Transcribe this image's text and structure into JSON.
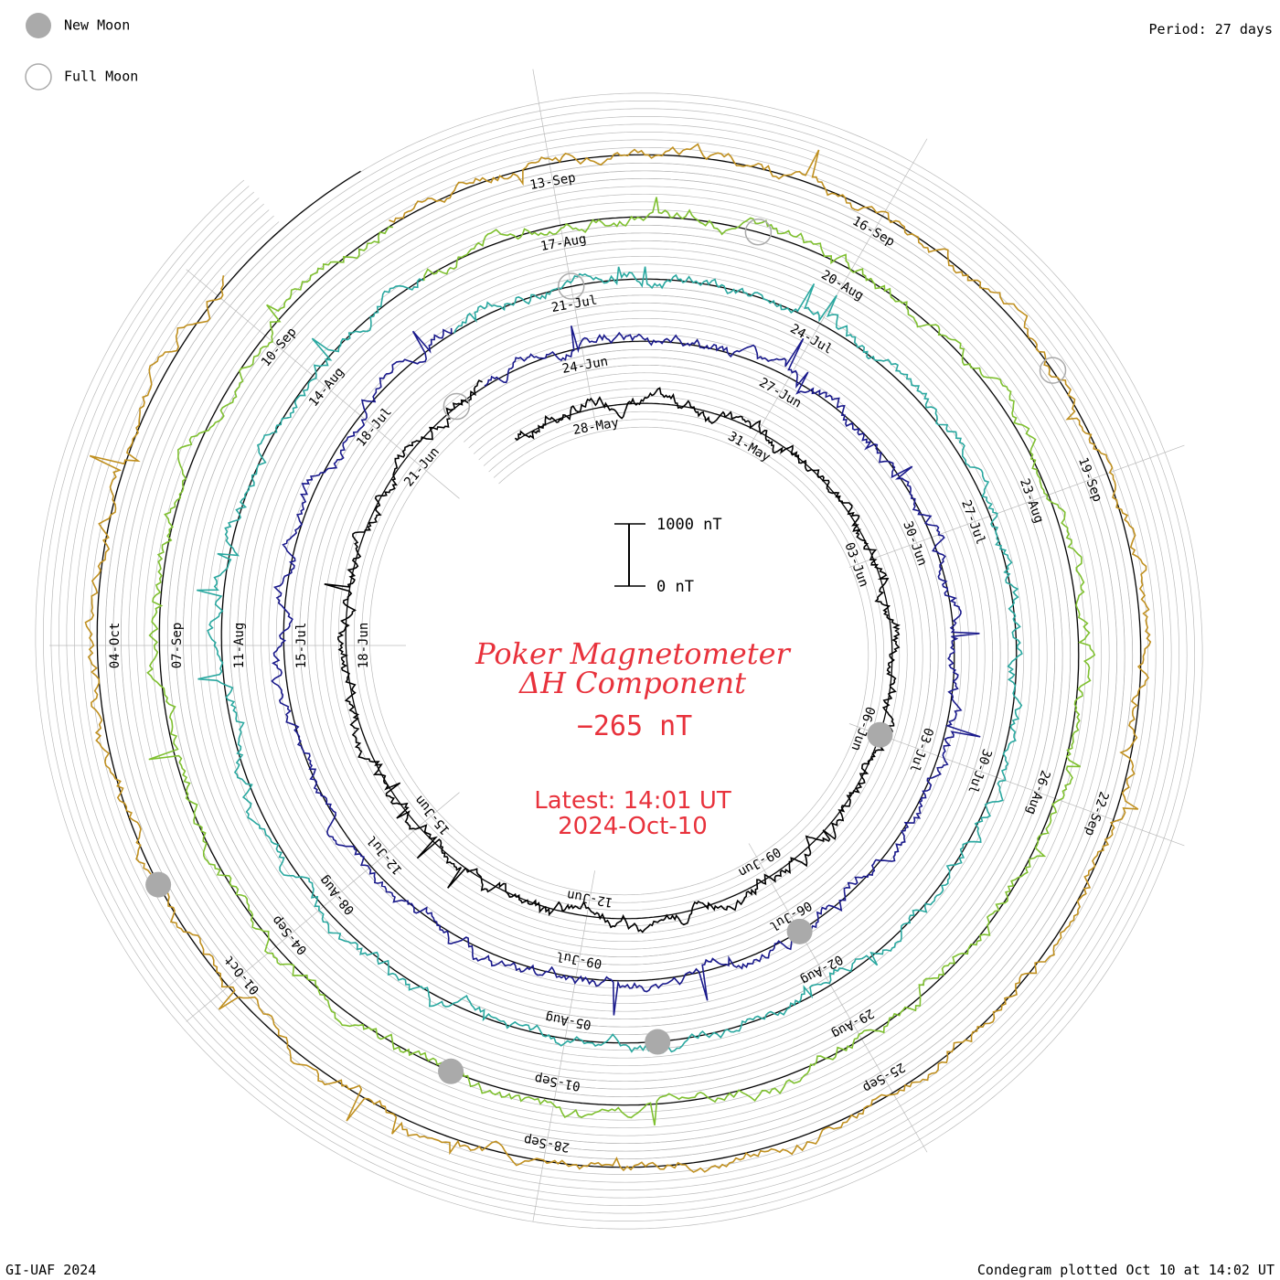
{
  "legend": {
    "new_moon_label": "New Moon",
    "full_moon_label": "Full Moon"
  },
  "header": {
    "period_label": "Period: 27 days"
  },
  "footer": {
    "credit": "GI-UAF 2024",
    "plotted": "Condegram plotted Oct 10 at 14:02 UT"
  },
  "scale_bar": {
    "top_label": "1000 nT",
    "bottom_label": "0 nT"
  },
  "center": {
    "title_line1": "Poker Magnetometer",
    "title_line2": "ΔH Component",
    "current_value": "−265 nT",
    "latest_time": "Latest: 14:01 UT",
    "latest_date": "2024-Oct-10"
  },
  "colors": {
    "new_moon": "#aaaaaa",
    "full_moon_stroke": "#aaaaaa",
    "grid": "#bbbbbb",
    "baseline": "#000000",
    "accent": "#e8323c"
  },
  "chart_data": {
    "type": "line",
    "period_days": 27,
    "series": [
      {
        "color": "#000000",
        "date_labels": [
          "28-May",
          "31-May",
          "03-Jun",
          "06-Jun",
          "09-Jun",
          "12-Jun",
          "15-Jun",
          "18-Jun",
          "21-Jun"
        ]
      },
      {
        "color": "#1a1a8c",
        "date_labels": [
          "24-Jun",
          "27-Jun",
          "30-Jun",
          "03-Jul",
          "06-Jul",
          "09-Jul",
          "12-Jul",
          "15-Jul",
          "18-Jul"
        ]
      },
      {
        "color": "#2aa8a0",
        "date_labels": [
          "21-Jul",
          "24-Jul",
          "27-Jul",
          "30-Jul",
          "02-Aug",
          "05-Aug",
          "08-Aug",
          "11-Aug",
          "14-Aug"
        ]
      },
      {
        "color": "#7fc030",
        "date_labels": [
          "17-Aug",
          "20-Aug",
          "23-Aug",
          "26-Aug",
          "29-Aug",
          "01-Sep",
          "04-Sep",
          "07-Sep",
          "10-Sep"
        ]
      },
      {
        "color": "#c09020",
        "date_labels": [
          "13-Sep",
          "16-Sep",
          "19-Sep",
          "22-Sep",
          "25-Sep",
          "28-Sep",
          "01-Oct",
          "04-Oct"
        ]
      }
    ],
    "new_moons": [
      "06-Jun",
      "06-Jul",
      "04-Aug",
      "02-Sep",
      "02-Oct"
    ],
    "full_moons": [
      "22-Jun",
      "21-Jul",
      "19-Aug",
      "18-Sep"
    ],
    "scale": {
      "span_nT": 1000,
      "labels": [
        "1000 nT",
        "0 nT"
      ]
    }
  }
}
